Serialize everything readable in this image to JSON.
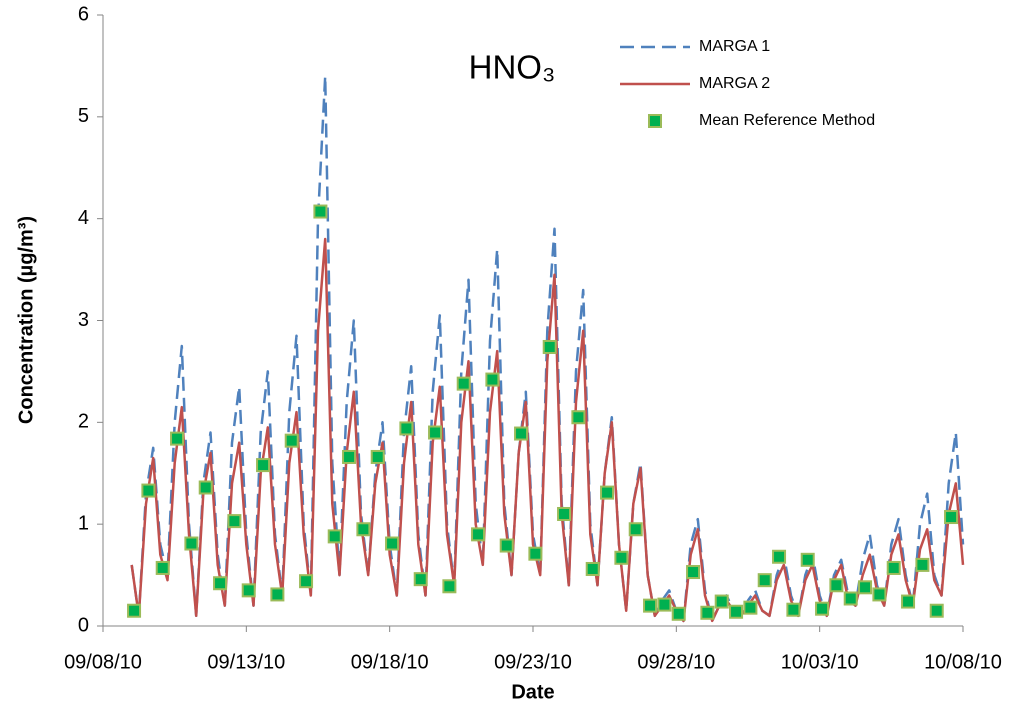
{
  "chart_data": {
    "type": "line",
    "title": "HNO₃",
    "x_label": "Date",
    "y_label": "Concentration (µg/m³)",
    "xlim": [
      "2010-09-08T00:00",
      "2010-10-08T00:00"
    ],
    "xticks": [
      {
        "value": "2010-09-08T00:00",
        "label": "09/08/10"
      },
      {
        "value": "2010-09-13T00:00",
        "label": "09/13/10"
      },
      {
        "value": "2010-09-18T00:00",
        "label": "09/18/10"
      },
      {
        "value": "2010-09-23T00:00",
        "label": "09/23/10"
      },
      {
        "value": "2010-09-28T00:00",
        "label": "09/28/10"
      },
      {
        "value": "2010-10-03T00:00",
        "label": "10/03/10"
      },
      {
        "value": "2010-10-08T00:00",
        "label": "10/08/10"
      }
    ],
    "ylim": [
      0,
      6
    ],
    "yticks": [
      0,
      1,
      2,
      3,
      4,
      5,
      6
    ],
    "series": [
      {
        "name": "MARGA 1",
        "color": "#4f81bd",
        "style": "dashed",
        "x": [
          "2010-09-09T00:00",
          "2010-09-09T06:00",
          "2010-09-09T12:00",
          "2010-09-09T18:00",
          "2010-09-10T00:00",
          "2010-09-10T06:00",
          "2010-09-10T12:00",
          "2010-09-10T18:00",
          "2010-09-11T00:00",
          "2010-09-11T06:00",
          "2010-09-11T12:00",
          "2010-09-11T18:00",
          "2010-09-12T00:00",
          "2010-09-12T06:00",
          "2010-09-12T12:00",
          "2010-09-12T18:00",
          "2010-09-13T00:00",
          "2010-09-13T06:00",
          "2010-09-13T12:00",
          "2010-09-13T18:00",
          "2010-09-14T00:00",
          "2010-09-14T06:00",
          "2010-09-14T12:00",
          "2010-09-14T18:00",
          "2010-09-15T00:00",
          "2010-09-15T06:00",
          "2010-09-15T12:00",
          "2010-09-15T18:00",
          "2010-09-16T00:00",
          "2010-09-16T06:00",
          "2010-09-16T12:00",
          "2010-09-16T18:00",
          "2010-09-17T00:00",
          "2010-09-17T06:00",
          "2010-09-17T12:00",
          "2010-09-17T18:00",
          "2010-09-18T00:00",
          "2010-09-18T06:00",
          "2010-09-18T12:00",
          "2010-09-18T18:00",
          "2010-09-19T00:00",
          "2010-09-19T06:00",
          "2010-09-19T12:00",
          "2010-09-19T18:00",
          "2010-09-20T00:00",
          "2010-09-20T06:00",
          "2010-09-20T12:00",
          "2010-09-20T18:00",
          "2010-09-21T00:00",
          "2010-09-21T06:00",
          "2010-09-21T12:00",
          "2010-09-21T18:00",
          "2010-09-22T00:00",
          "2010-09-22T06:00",
          "2010-09-22T12:00",
          "2010-09-22T18:00",
          "2010-09-23T00:00",
          "2010-09-23T06:00",
          "2010-09-23T12:00",
          "2010-09-23T18:00",
          "2010-09-24T00:00",
          "2010-09-24T06:00",
          "2010-09-24T12:00",
          "2010-09-24T18:00",
          "2010-09-25T00:00",
          "2010-09-25T06:00",
          "2010-09-25T12:00",
          "2010-09-25T18:00",
          "2010-09-26T00:00",
          "2010-09-26T06:00",
          "2010-09-26T12:00",
          "2010-09-26T18:00",
          "2010-09-27T00:00",
          "2010-09-27T06:00",
          "2010-09-27T12:00",
          "2010-09-27T18:00",
          "2010-09-28T00:00",
          "2010-09-28T06:00",
          "2010-09-28T12:00",
          "2010-09-28T18:00",
          "2010-09-29T00:00",
          "2010-09-29T06:00",
          "2010-09-29T12:00",
          "2010-09-29T18:00",
          "2010-09-30T00:00",
          "2010-09-30T06:00",
          "2010-09-30T12:00",
          "2010-09-30T18:00",
          "2010-10-01T00:00",
          "2010-10-01T06:00",
          "2010-10-01T12:00",
          "2010-10-01T18:00",
          "2010-10-02T00:00",
          "2010-10-02T06:00",
          "2010-10-02T12:00",
          "2010-10-02T18:00",
          "2010-10-03T00:00",
          "2010-10-03T06:00",
          "2010-10-03T12:00",
          "2010-10-03T18:00",
          "2010-10-04T00:00",
          "2010-10-04T06:00",
          "2010-10-04T12:00",
          "2010-10-04T18:00",
          "2010-10-05T00:00",
          "2010-10-05T06:00",
          "2010-10-05T12:00",
          "2010-10-05T18:00",
          "2010-10-06T00:00",
          "2010-10-06T06:00",
          "2010-10-06T12:00",
          "2010-10-06T18:00",
          "2010-10-07T00:00",
          "2010-10-07T06:00",
          "2010-10-07T12:00",
          "2010-10-07T18:00",
          "2010-10-08T00:00"
        ],
        "values": [
          0.6,
          0.1,
          1.3,
          1.75,
          0.8,
          0.5,
          2.0,
          2.75,
          1.0,
          0.1,
          1.4,
          1.9,
          0.7,
          0.2,
          1.8,
          2.35,
          0.9,
          0.2,
          1.9,
          2.5,
          0.9,
          0.3,
          2.1,
          2.85,
          1.0,
          0.3,
          4.0,
          5.4,
          1.6,
          0.5,
          2.2,
          3.0,
          1.1,
          0.5,
          1.5,
          2.0,
          0.8,
          0.3,
          1.9,
          2.55,
          0.9,
          0.3,
          2.3,
          3.05,
          1.0,
          0.4,
          2.5,
          3.4,
          1.2,
          0.6,
          2.8,
          3.7,
          1.2,
          0.5,
          1.7,
          2.3,
          0.9,
          0.5,
          2.9,
          3.9,
          1.2,
          0.4,
          2.5,
          3.3,
          1.0,
          0.4,
          1.5,
          2.05,
          0.8,
          0.15,
          1.2,
          1.6,
          0.5,
          0.1,
          0.25,
          0.35,
          0.15,
          0.05,
          0.8,
          1.05,
          0.35,
          0.05,
          0.2,
          0.3,
          0.15,
          0.1,
          0.25,
          0.35,
          0.15,
          0.1,
          0.5,
          0.7,
          0.3,
          0.1,
          0.5,
          0.7,
          0.3,
          0.1,
          0.5,
          0.65,
          0.3,
          0.2,
          0.65,
          0.9,
          0.4,
          0.2,
          0.8,
          1.05,
          0.5,
          0.2,
          1.0,
          1.3,
          0.5,
          0.3,
          1.4,
          1.9,
          0.8
        ]
      },
      {
        "name": "MARGA 2",
        "color": "#c0504d",
        "style": "solid",
        "x": [
          "2010-09-09T00:00",
          "2010-09-09T06:00",
          "2010-09-09T12:00",
          "2010-09-09T18:00",
          "2010-09-10T00:00",
          "2010-09-10T06:00",
          "2010-09-10T12:00",
          "2010-09-10T18:00",
          "2010-09-11T00:00",
          "2010-09-11T06:00",
          "2010-09-11T12:00",
          "2010-09-11T18:00",
          "2010-09-12T00:00",
          "2010-09-12T06:00",
          "2010-09-12T12:00",
          "2010-09-12T18:00",
          "2010-09-13T00:00",
          "2010-09-13T06:00",
          "2010-09-13T12:00",
          "2010-09-13T18:00",
          "2010-09-14T00:00",
          "2010-09-14T06:00",
          "2010-09-14T12:00",
          "2010-09-14T18:00",
          "2010-09-15T00:00",
          "2010-09-15T06:00",
          "2010-09-15T12:00",
          "2010-09-15T18:00",
          "2010-09-16T00:00",
          "2010-09-16T06:00",
          "2010-09-16T12:00",
          "2010-09-16T18:00",
          "2010-09-17T00:00",
          "2010-09-17T06:00",
          "2010-09-17T12:00",
          "2010-09-17T18:00",
          "2010-09-18T00:00",
          "2010-09-18T06:00",
          "2010-09-18T12:00",
          "2010-09-18T18:00",
          "2010-09-19T00:00",
          "2010-09-19T06:00",
          "2010-09-19T12:00",
          "2010-09-19T18:00",
          "2010-09-20T00:00",
          "2010-09-20T06:00",
          "2010-09-20T12:00",
          "2010-09-20T18:00",
          "2010-09-21T00:00",
          "2010-09-21T06:00",
          "2010-09-21T12:00",
          "2010-09-21T18:00",
          "2010-09-22T00:00",
          "2010-09-22T06:00",
          "2010-09-22T12:00",
          "2010-09-22T18:00",
          "2010-09-23T00:00",
          "2010-09-23T06:00",
          "2010-09-23T12:00",
          "2010-09-23T18:00",
          "2010-09-24T00:00",
          "2010-09-24T06:00",
          "2010-09-24T12:00",
          "2010-09-24T18:00",
          "2010-09-25T00:00",
          "2010-09-25T06:00",
          "2010-09-25T12:00",
          "2010-09-25T18:00",
          "2010-09-26T00:00",
          "2010-09-26T06:00",
          "2010-09-26T12:00",
          "2010-09-26T18:00",
          "2010-09-27T00:00",
          "2010-09-27T06:00",
          "2010-09-27T12:00",
          "2010-09-27T18:00",
          "2010-09-28T00:00",
          "2010-09-28T06:00",
          "2010-09-28T12:00",
          "2010-09-28T18:00",
          "2010-09-29T00:00",
          "2010-09-29T06:00",
          "2010-09-29T12:00",
          "2010-09-29T18:00",
          "2010-09-30T00:00",
          "2010-09-30T06:00",
          "2010-09-30T12:00",
          "2010-09-30T18:00",
          "2010-10-01T00:00",
          "2010-10-01T06:00",
          "2010-10-01T12:00",
          "2010-10-01T18:00",
          "2010-10-02T00:00",
          "2010-10-02T06:00",
          "2010-10-02T12:00",
          "2010-10-02T18:00",
          "2010-10-03T00:00",
          "2010-10-03T06:00",
          "2010-10-03T12:00",
          "2010-10-03T18:00",
          "2010-10-04T00:00",
          "2010-10-04T06:00",
          "2010-10-04T12:00",
          "2010-10-04T18:00",
          "2010-10-05T00:00",
          "2010-10-05T06:00",
          "2010-10-05T12:00",
          "2010-10-05T18:00",
          "2010-10-06T00:00",
          "2010-10-06T06:00",
          "2010-10-06T12:00",
          "2010-10-06T18:00",
          "2010-10-07T00:00",
          "2010-10-07T06:00",
          "2010-10-07T12:00",
          "2010-10-07T18:00",
          "2010-10-08T00:00"
        ],
        "values": [
          0.6,
          0.1,
          1.2,
          1.65,
          0.7,
          0.45,
          1.6,
          2.15,
          0.9,
          0.1,
          1.3,
          1.7,
          0.6,
          0.2,
          1.4,
          1.8,
          0.8,
          0.2,
          1.5,
          1.95,
          0.8,
          0.3,
          1.6,
          2.1,
          0.9,
          0.3,
          2.9,
          3.8,
          1.2,
          0.5,
          1.7,
          2.3,
          1.0,
          0.5,
          1.4,
          1.8,
          0.7,
          0.3,
          1.6,
          2.2,
          0.8,
          0.3,
          1.8,
          2.35,
          0.9,
          0.4,
          2.0,
          2.6,
          1.0,
          0.6,
          2.1,
          2.7,
          1.1,
          0.5,
          1.7,
          2.2,
          0.8,
          0.5,
          2.6,
          3.45,
          1.1,
          0.4,
          2.2,
          2.9,
          0.9,
          0.4,
          1.5,
          2.0,
          0.8,
          0.15,
          1.2,
          1.55,
          0.5,
          0.1,
          0.2,
          0.3,
          0.15,
          0.05,
          0.7,
          0.95,
          0.3,
          0.05,
          0.2,
          0.25,
          0.15,
          0.1,
          0.2,
          0.3,
          0.15,
          0.1,
          0.45,
          0.6,
          0.25,
          0.1,
          0.45,
          0.6,
          0.25,
          0.1,
          0.45,
          0.6,
          0.25,
          0.2,
          0.5,
          0.7,
          0.35,
          0.2,
          0.7,
          0.9,
          0.45,
          0.2,
          0.75,
          0.95,
          0.45,
          0.3,
          1.1,
          1.4,
          0.6
        ]
      },
      {
        "name": "Mean Reference Method",
        "color": "#00b050",
        "edge_color": "#9bbb59",
        "marker": "square",
        "x": [
          "2010-09-09T02:00",
          "2010-09-09T14:00",
          "2010-09-10T02:00",
          "2010-09-10T14:00",
          "2010-09-11T02:00",
          "2010-09-11T14:00",
          "2010-09-12T02:00",
          "2010-09-12T14:00",
          "2010-09-13T02:00",
          "2010-09-13T14:00",
          "2010-09-14T02:00",
          "2010-09-14T14:00",
          "2010-09-15T02:00",
          "2010-09-15T14:00",
          "2010-09-16T02:00",
          "2010-09-16T14:00",
          "2010-09-17T02:00",
          "2010-09-17T14:00",
          "2010-09-18T02:00",
          "2010-09-18T14:00",
          "2010-09-19T02:00",
          "2010-09-19T14:00",
          "2010-09-20T02:00",
          "2010-09-20T14:00",
          "2010-09-21T02:00",
          "2010-09-21T14:00",
          "2010-09-22T02:00",
          "2010-09-22T14:00",
          "2010-09-23T02:00",
          "2010-09-23T14:00",
          "2010-09-24T02:00",
          "2010-09-24T14:00",
          "2010-09-25T02:00",
          "2010-09-25T14:00",
          "2010-09-26T02:00",
          "2010-09-26T14:00",
          "2010-09-27T02:00",
          "2010-09-27T14:00",
          "2010-09-28T02:00",
          "2010-09-28T14:00",
          "2010-09-29T02:00",
          "2010-09-29T14:00",
          "2010-09-30T02:00",
          "2010-09-30T14:00",
          "2010-10-01T02:00",
          "2010-10-01T14:00",
          "2010-10-02T02:00",
          "2010-10-02T14:00",
          "2010-10-03T02:00",
          "2010-10-03T14:00",
          "2010-10-04T02:00",
          "2010-10-04T14:00",
          "2010-10-05T02:00",
          "2010-10-05T14:00",
          "2010-10-06T02:00",
          "2010-10-06T14:00",
          "2010-10-07T02:00",
          "2010-10-07T14:00"
        ],
        "values": [
          0.15,
          1.33,
          0.57,
          1.84,
          0.81,
          1.36,
          0.42,
          1.03,
          0.35,
          1.58,
          0.31,
          1.82,
          0.44,
          4.07,
          0.88,
          1.66,
          0.95,
          1.66,
          0.81,
          1.94,
          0.46,
          1.9,
          0.39,
          2.38,
          0.9,
          2.42,
          0.79,
          1.89,
          0.71,
          2.74,
          1.1,
          2.05,
          0.56,
          1.31,
          0.67,
          0.95,
          0.2,
          0.21,
          0.12,
          0.53,
          0.13,
          0.24,
          0.14,
          0.18,
          0.45,
          0.68,
          0.16,
          0.65,
          0.17,
          0.4,
          0.27,
          0.38,
          0.31,
          0.57,
          0.24,
          0.6,
          0.15,
          1.07
        ]
      }
    ]
  }
}
